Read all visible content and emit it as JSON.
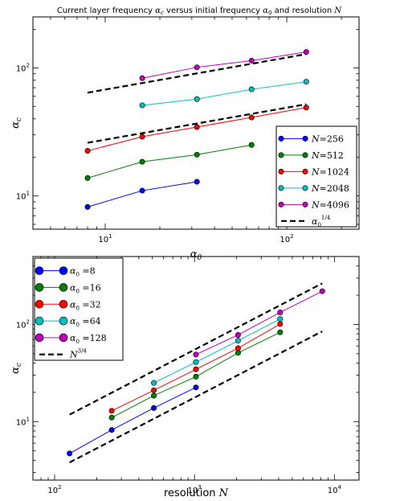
{
  "chart_data": [
    {
      "type": "line",
      "title": "Current layer frequency αc versus initial frequency α0 and resolution N",
      "xlabel": "α0",
      "ylabel": "αc",
      "xscale": "log",
      "yscale": "log",
      "xlim": [
        4,
        250
      ],
      "ylim": [
        5.5,
        250
      ],
      "grid": false,
      "legend_position": "right",
      "xticks": [
        {
          "v": 10,
          "label": "10",
          "sup": "1"
        },
        {
          "v": 100,
          "label": "10",
          "sup": "2"
        }
      ],
      "yticks": [
        {
          "v": 10,
          "label": "10",
          "sup": "1"
        },
        {
          "v": 100,
          "label": "10",
          "sup": "2"
        }
      ],
      "series": [
        {
          "name": "N=256",
          "color": "#0000ff",
          "x": [
            8,
            16,
            32
          ],
          "y": [
            8.2,
            11,
            12.9
          ]
        },
        {
          "name": "N=512",
          "color": "#007f00",
          "x": [
            8,
            16,
            32,
            64
          ],
          "y": [
            13.8,
            18.5,
            21,
            25
          ]
        },
        {
          "name": "N=1024",
          "color": "#ff0000",
          "x": [
            8,
            16,
            32,
            64,
            128
          ],
          "y": [
            22.5,
            29,
            34.5,
            41,
            49
          ]
        },
        {
          "name": "N=2048",
          "color": "#00bfbf",
          "x": [
            16,
            32,
            64,
            128
          ],
          "y": [
            51,
            57,
            68,
            78
          ]
        },
        {
          "name": "N=4096",
          "color": "#bf00bf",
          "x": [
            16,
            32,
            64,
            128
          ],
          "y": [
            83,
            101,
            114,
            133
          ]
        }
      ],
      "reference_lines": [
        {
          "name": "α0^1/4",
          "x": [
            8,
            128
          ],
          "y": [
            26,
            52
          ]
        },
        {
          "name": "",
          "x": [
            8,
            128
          ],
          "y": [
            64,
            128
          ]
        }
      ]
    },
    {
      "type": "line",
      "title": "",
      "xlabel": "resolution N",
      "ylabel": "αc",
      "xscale": "log",
      "yscale": "log",
      "xlim": [
        70,
        15000
      ],
      "ylim": [
        2.5,
        500
      ],
      "grid": false,
      "legend_position": "top-left",
      "xticks": [
        {
          "v": 100,
          "label": "10",
          "sup": "2"
        },
        {
          "v": 1000,
          "label": "10",
          "sup": "3"
        },
        {
          "v": 10000,
          "label": "10",
          "sup": "4"
        }
      ],
      "yticks": [
        {
          "v": 10,
          "label": "10",
          "sup": "1"
        },
        {
          "v": 100,
          "label": "10",
          "sup": "2"
        }
      ],
      "series": [
        {
          "name": "α0=8",
          "color": "#0000ff",
          "x": [
            128,
            256,
            512,
            1024
          ],
          "y": [
            4.7,
            8.2,
            13.8,
            22.5
          ]
        },
        {
          "name": "α0=16",
          "color": "#007f00",
          "x": [
            256,
            512,
            1024,
            2048,
            4096
          ],
          "y": [
            11,
            18.5,
            29,
            51,
            83
          ]
        },
        {
          "name": "α0=32",
          "color": "#ff0000",
          "x": [
            256,
            512,
            1024,
            2048,
            4096
          ],
          "y": [
            12.9,
            21,
            34.5,
            57,
            101
          ]
        },
        {
          "name": "α0=64",
          "color": "#00bfbf",
          "x": [
            512,
            1024,
            2048,
            4096
          ],
          "y": [
            25,
            41,
            68,
            114
          ]
        },
        {
          "name": "α0=128",
          "color": "#bf00bf",
          "x": [
            1024,
            2048,
            4096,
            8192
          ],
          "y": [
            49,
            78,
            133,
            220
          ]
        }
      ],
      "reference_lines": [
        {
          "name": "N3/4",
          "x": [
            128,
            8192
          ],
          "y": [
            3.8,
            85
          ]
        },
        {
          "name": "",
          "x": [
            128,
            8192
          ],
          "y": [
            11.8,
            265
          ]
        }
      ]
    }
  ]
}
